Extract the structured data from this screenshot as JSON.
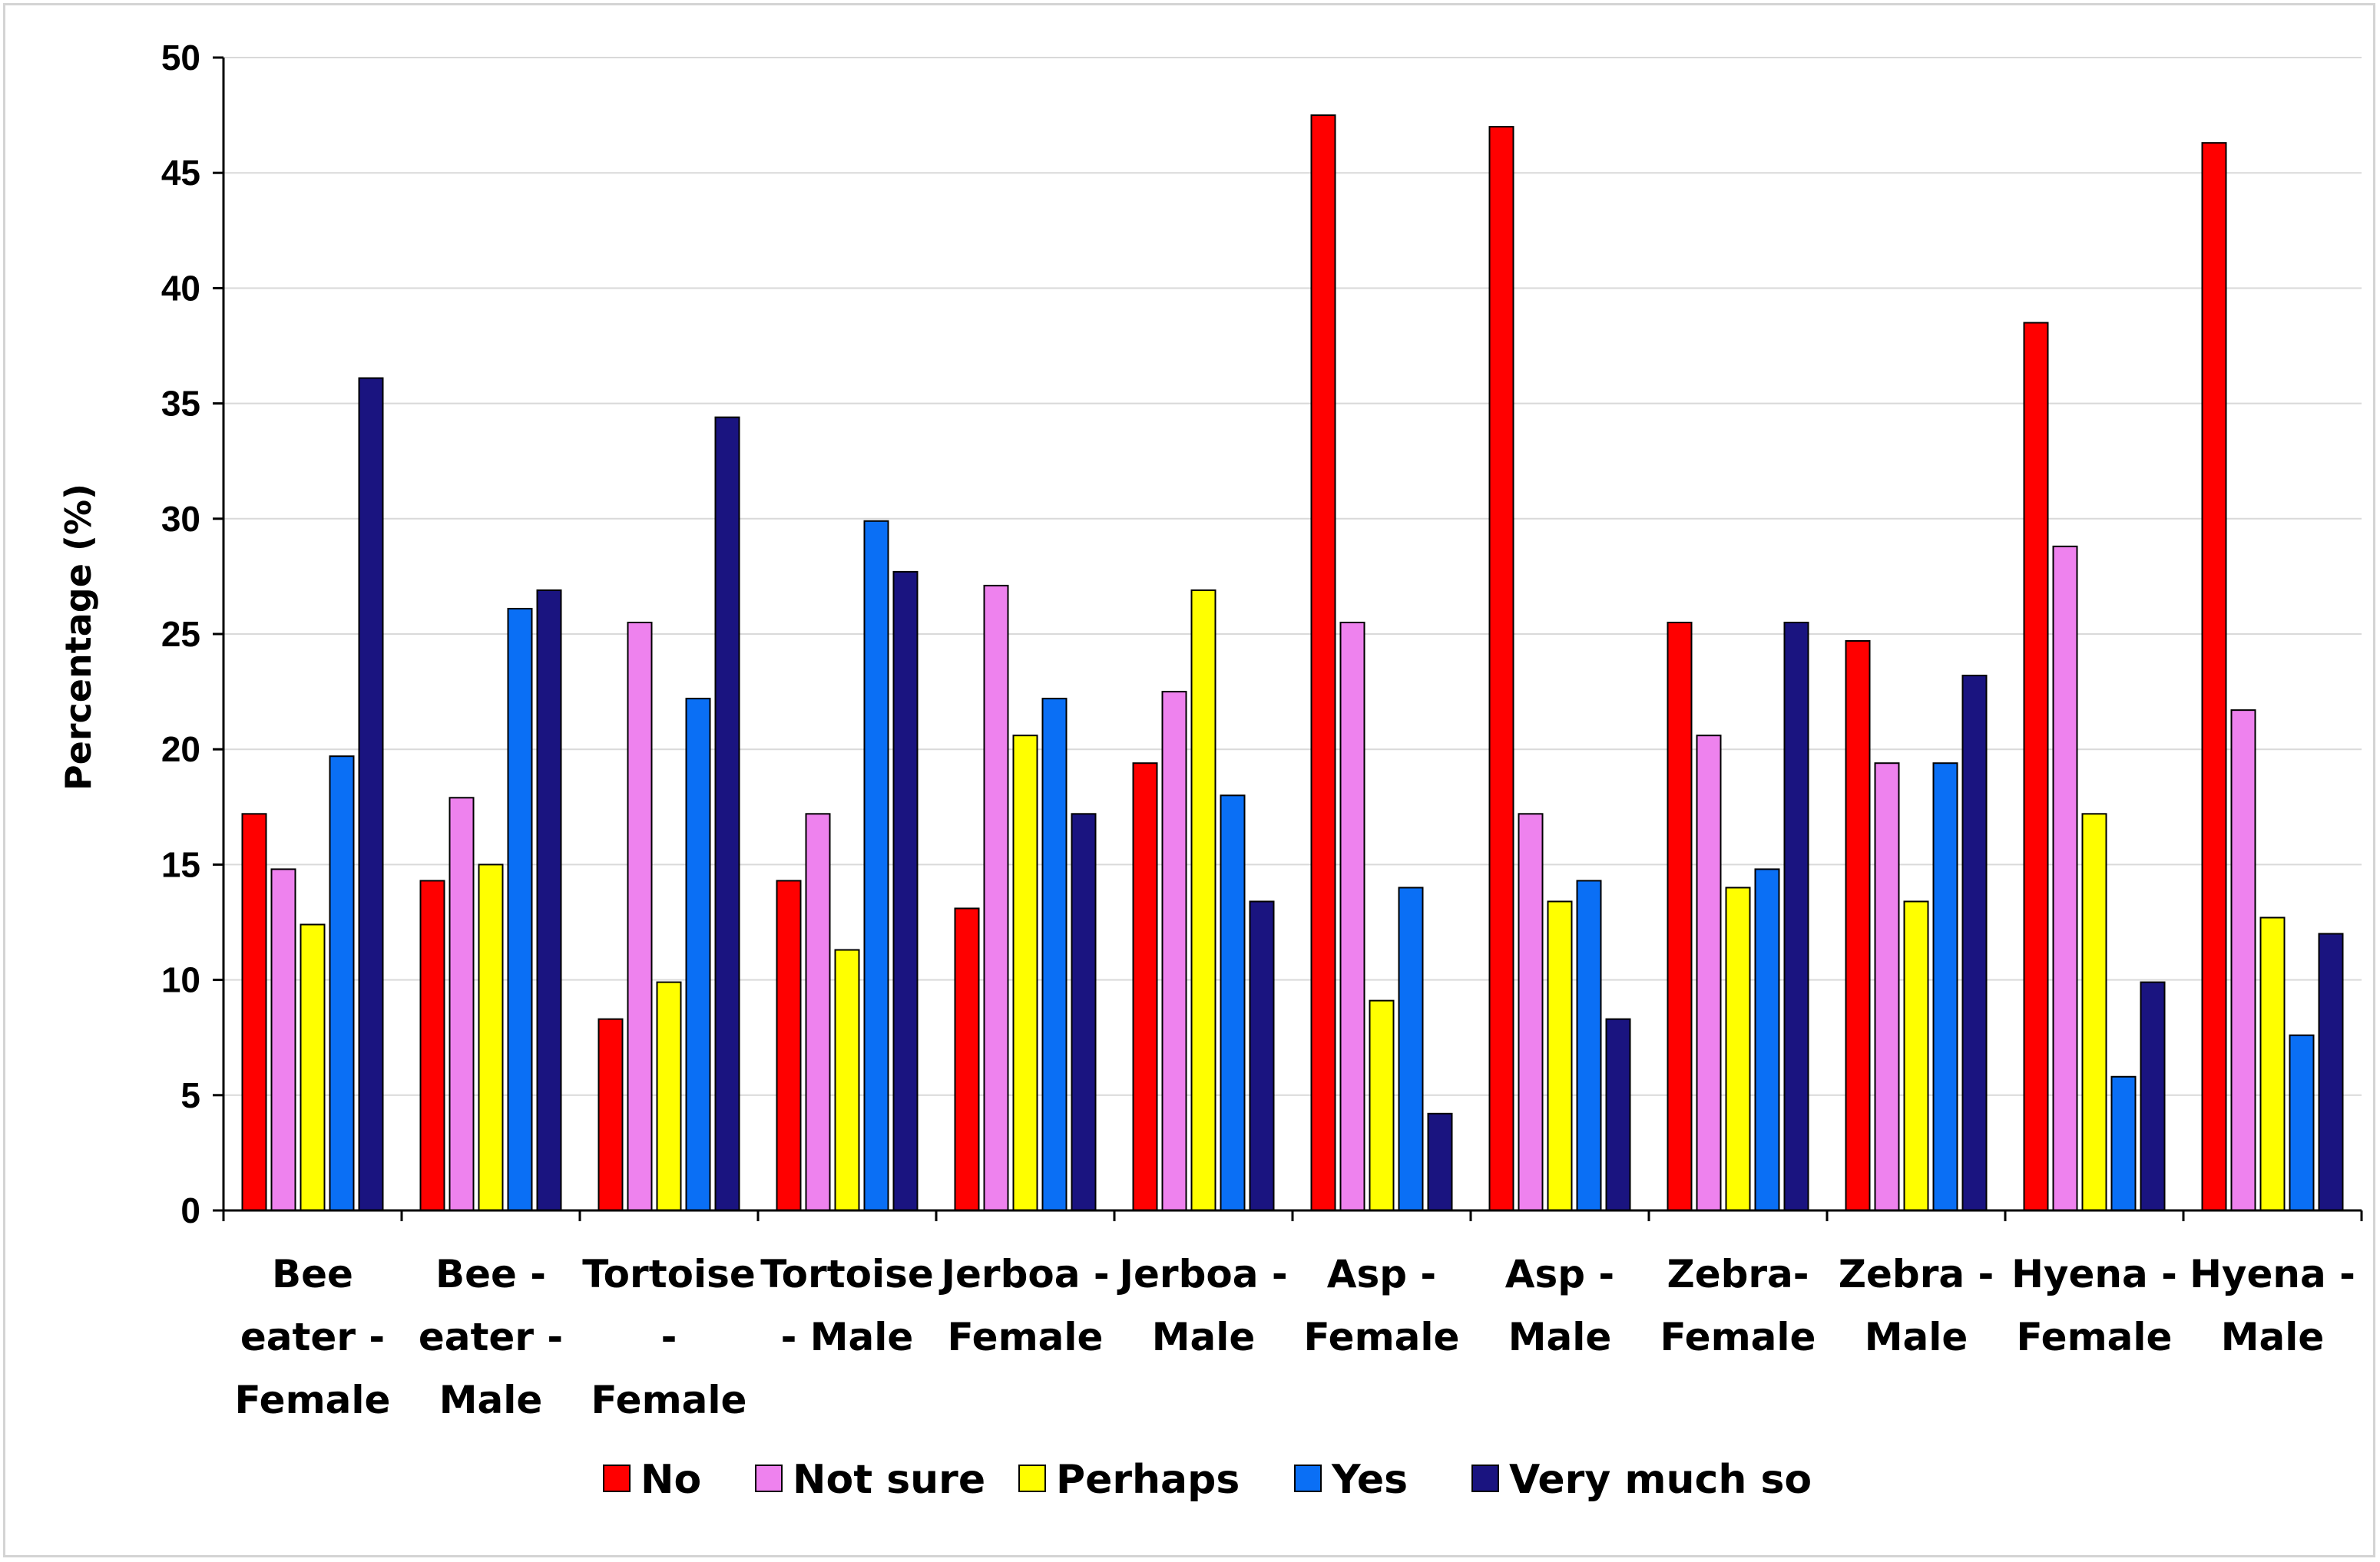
{
  "chart_data": {
    "type": "bar",
    "title": "",
    "xlabel": "",
    "ylabel": "Percentage (%)",
    "ylim": [
      0,
      50
    ],
    "yticks": [
      0,
      5,
      10,
      15,
      20,
      25,
      30,
      35,
      40,
      45,
      50
    ],
    "grid": true,
    "legend_position": "bottom",
    "categories": [
      [
        "Bee",
        "eater -",
        "Female"
      ],
      [
        "Bee -",
        "eater -",
        "Male"
      ],
      [
        "Tortoise",
        "-",
        "Female"
      ],
      [
        "Tortoise",
        "- Male"
      ],
      [
        "Jerboa -",
        "Female"
      ],
      [
        "Jerboa -",
        "Male"
      ],
      [
        "Asp -",
        "Female"
      ],
      [
        "Asp -",
        "Male"
      ],
      [
        "Zebra-",
        "Female"
      ],
      [
        "Zebra -",
        "Male"
      ],
      [
        "Hyena -",
        "Female"
      ],
      [
        "Hyena -",
        "Male"
      ]
    ],
    "series": [
      {
        "name": "No",
        "color": "#ff0000",
        "values": [
          17.2,
          14.3,
          8.3,
          14.3,
          13.1,
          19.4,
          47.5,
          47.0,
          25.5,
          24.7,
          38.5,
          46.3
        ]
      },
      {
        "name": "Not sure",
        "color": "#ee82ee",
        "values": [
          14.8,
          17.9,
          25.5,
          17.2,
          27.1,
          22.5,
          25.5,
          17.2,
          20.6,
          19.4,
          28.8,
          21.7
        ]
      },
      {
        "name": "Perhaps",
        "color": "#ffff00",
        "values": [
          12.4,
          15.0,
          9.9,
          11.3,
          20.6,
          26.9,
          9.1,
          13.4,
          14.0,
          13.4,
          17.2,
          12.7
        ]
      },
      {
        "name": "Yes",
        "color": "#0a6ff5",
        "values": [
          19.7,
          26.1,
          22.2,
          29.9,
          22.2,
          18.0,
          14.0,
          14.3,
          14.8,
          19.4,
          5.8,
          7.6
        ]
      },
      {
        "name": "Very much so",
        "color": "#1a1480",
        "values": [
          36.1,
          26.9,
          34.4,
          27.7,
          17.2,
          13.4,
          4.2,
          8.3,
          25.5,
          23.2,
          9.9,
          12.0
        ]
      }
    ]
  }
}
